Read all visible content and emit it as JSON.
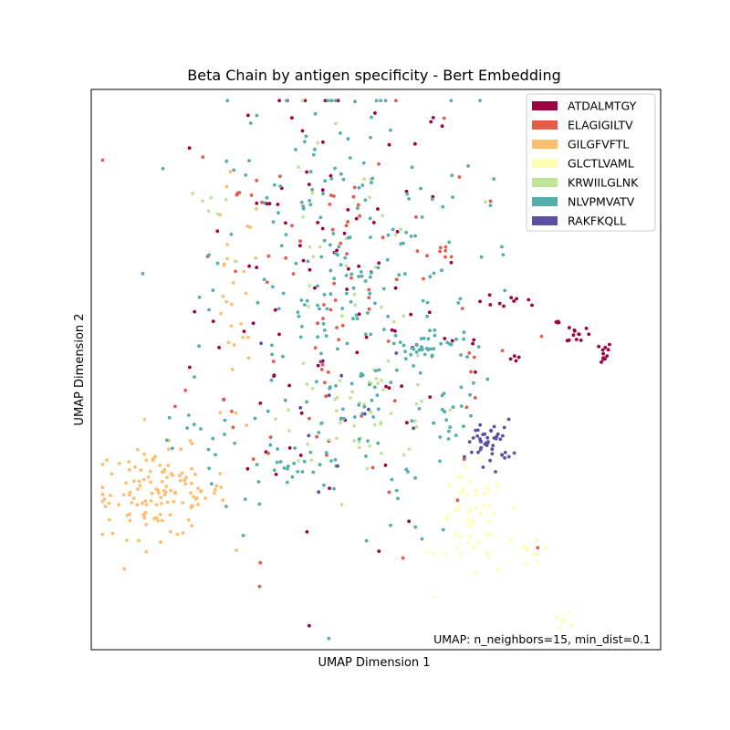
{
  "chart_data": {
    "type": "scatter",
    "title": "Beta Chain by antigen specificity - Bert Embedding",
    "xlabel": "UMAP Dimension 1",
    "ylabel": "UMAP Dimension 2",
    "annotation": "UMAP: n_neighbors=15, min_dist=0.1",
    "xlim": [
      0,
      100
    ],
    "ylim": [
      0,
      100
    ],
    "ticks": "none",
    "grid": false,
    "legend_position": "top-right",
    "series": [
      {
        "name": "ATDALMTGY",
        "color": "#9e0142",
        "clusters": [
          {
            "cx": 42,
            "cy": 62,
            "sx": 12,
            "sy": 22,
            "n": 95
          },
          {
            "cx": 73.5,
            "cy": 62,
            "sx": 3,
            "sy": 0.6,
            "n": 10
          },
          {
            "cx": 85.5,
            "cy": 56.5,
            "sx": 1,
            "sy": 0.9,
            "n": 12
          },
          {
            "cx": 81.5,
            "cy": 58.5,
            "sx": 0.5,
            "sy": 0.4,
            "n": 5
          },
          {
            "cx": 65.5,
            "cy": 55,
            "sx": 1.5,
            "sy": 0.5,
            "n": 4
          },
          {
            "cx": 89.5,
            "cy": 53,
            "sx": 1,
            "sy": 1,
            "n": 12
          },
          {
            "cx": 74.5,
            "cy": 52,
            "sx": 0.8,
            "sy": 0.4,
            "n": 4
          }
        ]
      },
      {
        "name": "ELAGIGILTV",
        "color": "#e55c4b",
        "clusters": [
          {
            "cx": 43,
            "cy": 62,
            "sx": 13,
            "sy": 22,
            "n": 85
          },
          {
            "cx": 62.5,
            "cy": 71,
            "sx": 1.5,
            "sy": 1,
            "n": 6
          },
          {
            "cx": 67,
            "cy": 47,
            "sx": 1.5,
            "sy": 3,
            "n": 4
          },
          {
            "cx": 27,
            "cy": 82,
            "sx": 1,
            "sy": 1,
            "n": 5
          }
        ]
      },
      {
        "name": "GILGFVFTL",
        "color": "#fdbf6f",
        "clusters": [
          {
            "cx": 12,
            "cy": 28,
            "sx": 6,
            "sy": 4,
            "n": 130
          },
          {
            "cx": 25,
            "cy": 60,
            "sx": 2.5,
            "sy": 12,
            "n": 30
          }
        ]
      },
      {
        "name": "GLCTLVAML",
        "color": "#ffffb2",
        "clusters": [
          {
            "cx": 67,
            "cy": 22,
            "sx": 3,
            "sy": 5,
            "n": 55
          },
          {
            "cx": 78,
            "cy": 18,
            "sx": 1.5,
            "sy": 1.5,
            "n": 10
          },
          {
            "cx": 83,
            "cy": 5,
            "sx": 0.8,
            "sy": 0.8,
            "n": 6
          },
          {
            "cx": 65,
            "cy": 30,
            "sx": 2,
            "sy": 1.5,
            "n": 5
          }
        ]
      },
      {
        "name": "KRWIILGLNK",
        "color": "#bfe49a",
        "clusters": [
          {
            "cx": 48,
            "cy": 42,
            "sx": 7,
            "sy": 4,
            "n": 45
          },
          {
            "cx": 44,
            "cy": 68,
            "sx": 8,
            "sy": 15,
            "n": 35
          },
          {
            "cx": 21,
            "cy": 80,
            "sx": 2,
            "sy": 1,
            "n": 6
          }
        ]
      },
      {
        "name": "NLVPMVATV",
        "color": "#54aeac",
        "clusters": [
          {
            "cx": 44,
            "cy": 62,
            "sx": 12,
            "sy": 22,
            "n": 260
          },
          {
            "cx": 57.5,
            "cy": 54,
            "sx": 2,
            "sy": 1.5,
            "n": 25
          },
          {
            "cx": 36,
            "cy": 32,
            "sx": 3,
            "sy": 1.5,
            "n": 14
          },
          {
            "cx": 20,
            "cy": 37,
            "sx": 3,
            "sy": 3,
            "n": 12
          },
          {
            "cx": 64,
            "cy": 40,
            "sx": 3,
            "sy": 3,
            "n": 12
          },
          {
            "cx": 63.5,
            "cy": 55,
            "sx": 2,
            "sy": 1,
            "n": 6
          }
        ]
      },
      {
        "name": "RAKFKQLL",
        "color": "#5e4fa2",
        "clusters": [
          {
            "cx": 70,
            "cy": 37,
            "sx": 2,
            "sy": 2,
            "n": 45
          },
          {
            "cx": 45,
            "cy": 45,
            "sx": 8,
            "sy": 8,
            "n": 12
          }
        ]
      }
    ]
  }
}
